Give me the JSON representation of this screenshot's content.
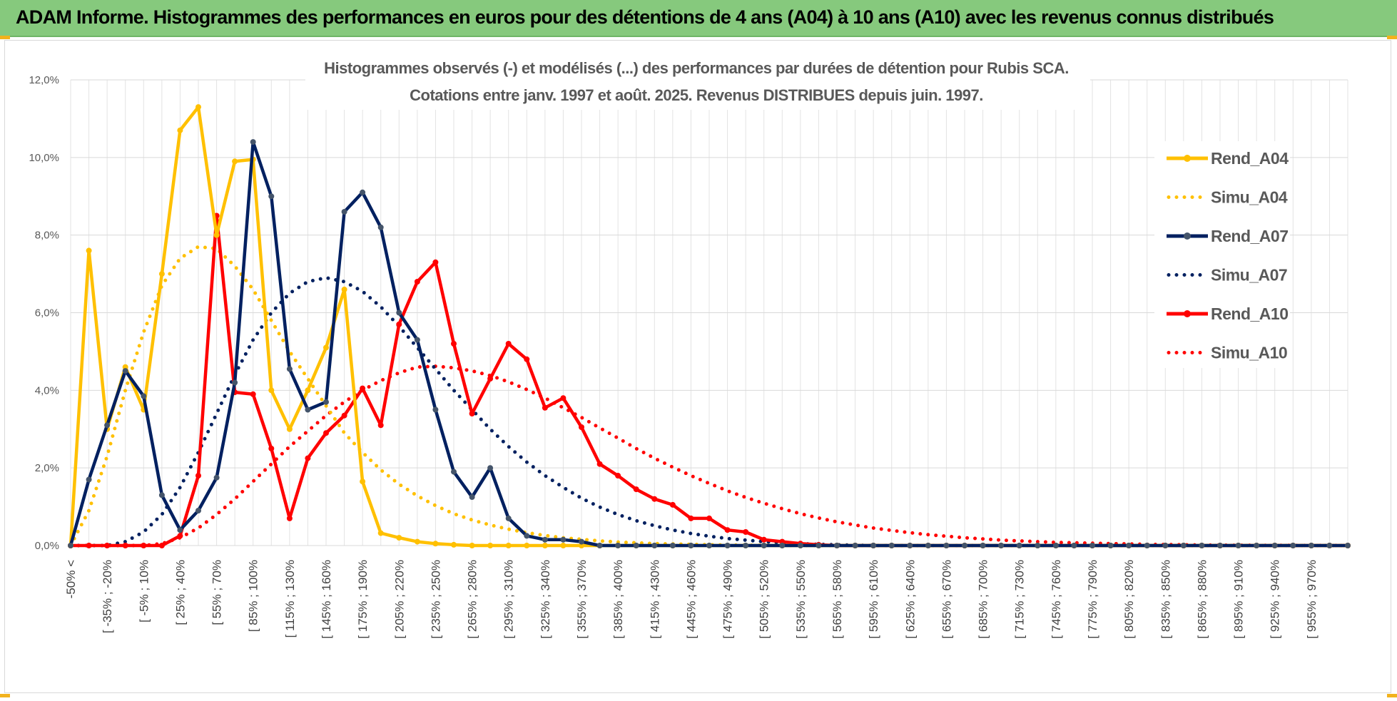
{
  "banner": {
    "title": "ADAM Informe. Histogrammes des performances en euros pour des détentions de 4 ans (A04) à 10 ans (A10) avec les revenus connus distribués",
    "background": "#86c97d"
  },
  "chart_data": {
    "type": "line",
    "title_line1": "Histogrammes observés (-) et modélisés (...) des performances par durées de détention pour Rubis SCA.",
    "title_line2": "Cotations entre janv. 1997 et août. 2025. Revenus DISTRIBUES depuis juin. 1997.",
    "ylim": [
      0,
      12
    ],
    "y_ticks": [
      "0,0%",
      "2,0%",
      "4,0%",
      "6,0%",
      "8,0%",
      "10,0%",
      "12,0%"
    ],
    "grid": true,
    "legend_position": "right",
    "x_labels": [
      "-50% <",
      "[ -35% ; -20%",
      "[ -5% ; 10%",
      "[ 25% ; 40%",
      "[ 55% ; 70%",
      "[ 85% ; 100%",
      "[ 115% ; 130%",
      "[ 145% ; 160%",
      "[ 175% ; 190%",
      "[ 205% ; 220%",
      "[ 235% ; 250%",
      "[ 265% ; 280%",
      "[ 295% ; 310%",
      "[ 325% ; 340%",
      "[ 355% ; 370%",
      "[ 385% ; 400%",
      "[ 415% ; 430%",
      "[ 445% ; 460%",
      "[ 475% ; 490%",
      "[ 505% ; 520%",
      "[ 535% ; 550%",
      "[ 565% ; 580%",
      "[ 595% ; 610%",
      "[ 625% ; 640%",
      "[ 655% ; 670%",
      "[ 685% ; 700%",
      "[ 715% ; 730%",
      "[ 745% ; 760%",
      "[ 775% ; 790%",
      "[ 805% ; 820%",
      "[ 835% ; 850%",
      "[ 865% ; 880%",
      "[ 895% ; 910%",
      "[ 925% ; 940%",
      "[ 955% ; 970%"
    ],
    "series": [
      {
        "name": "Rend_A04",
        "style": "solid",
        "color": "#ffc000",
        "values": [
          0,
          7.6,
          3.0,
          4.6,
          3.5,
          7.0,
          10.7,
          11.3,
          8.0,
          9.9,
          9.95,
          4.0,
          3.0,
          4.0,
          5.1,
          6.6,
          1.65,
          0.32,
          0.2,
          0.1,
          0.05,
          0.02,
          0,
          0,
          0,
          0,
          0,
          0,
          0,
          0
        ]
      },
      {
        "name": "Simu_A04",
        "style": "dotted",
        "color": "#ffc000",
        "values": [
          0,
          0.9,
          2.3,
          4.0,
          5.5,
          6.7,
          7.4,
          7.7,
          7.65,
          7.2,
          6.6,
          5.8,
          5.0,
          4.3,
          3.6,
          2.9,
          2.4,
          1.95,
          1.58,
          1.28,
          1.03,
          0.82,
          0.66,
          0.53,
          0.42,
          0.33,
          0.26,
          0.2,
          0.16,
          0.12,
          0.09,
          0.07,
          0.05,
          0.04,
          0.03,
          0.02,
          0.015,
          0.01,
          0.005,
          0,
          0
        ]
      },
      {
        "name": "Rend_A07",
        "style": "solid",
        "color": "#002060",
        "values": [
          0,
          1.7,
          3.1,
          4.5,
          3.85,
          1.3,
          0.4,
          0.9,
          1.75,
          4.2,
          10.4,
          9.0,
          4.55,
          3.5,
          3.7,
          8.6,
          9.1,
          8.2,
          6.0,
          5.3,
          3.5,
          1.9,
          1.25,
          2.0,
          0.7,
          0.25,
          0.15,
          0.15,
          0.1,
          0,
          0,
          0,
          0,
          0,
          0,
          0,
          0,
          0,
          0,
          0,
          0,
          0,
          0,
          0,
          0,
          0,
          0,
          0,
          0,
          0,
          0,
          0,
          0,
          0,
          0,
          0,
          0,
          0,
          0,
          0,
          0,
          0,
          0,
          0,
          0,
          0,
          0,
          0,
          0,
          0
        ]
      },
      {
        "name": "Simu_A07",
        "style": "dotted",
        "color": "#002060",
        "values": [
          0,
          0,
          0,
          0.1,
          0.35,
          0.8,
          1.5,
          2.4,
          3.4,
          4.4,
          5.3,
          6.0,
          6.5,
          6.8,
          6.9,
          6.8,
          6.55,
          6.15,
          5.65,
          5.1,
          4.55,
          4.0,
          3.5,
          3.0,
          2.55,
          2.15,
          1.8,
          1.5,
          1.22,
          0.99,
          0.8,
          0.64,
          0.51,
          0.4,
          0.31,
          0.24,
          0.18,
          0.14,
          0.1,
          0.07,
          0.05,
          0.03,
          0.02,
          0.01,
          0,
          0
        ]
      },
      {
        "name": "Rend_A10",
        "style": "solid",
        "color": "#ff0000",
        "values": [
          0,
          0,
          0,
          0,
          0,
          0,
          0.25,
          1.8,
          8.5,
          3.95,
          3.9,
          2.5,
          0.7,
          2.25,
          2.9,
          3.35,
          4.05,
          3.1,
          5.7,
          6.8,
          7.3,
          5.2,
          3.4,
          4.3,
          5.2,
          4.8,
          3.55,
          3.8,
          3.05,
          2.1,
          1.8,
          1.45,
          1.2,
          1.05,
          0.7,
          0.7,
          0.4,
          0.35,
          0.15,
          0.1,
          0.05,
          0.02,
          0,
          0,
          0,
          0,
          0,
          0,
          0,
          0,
          0,
          0,
          0,
          0,
          0,
          0,
          0,
          0,
          0,
          0,
          0,
          0,
          0,
          0,
          0,
          0,
          0,
          0,
          0,
          0
        ]
      },
      {
        "name": "Simu_A10",
        "style": "dotted",
        "color": "#ff0000",
        "values": [
          0,
          0,
          0,
          0,
          0,
          0.05,
          0.2,
          0.45,
          0.8,
          1.2,
          1.65,
          2.1,
          2.55,
          2.95,
          3.35,
          3.7,
          4.0,
          4.25,
          4.45,
          4.6,
          4.62,
          4.58,
          4.5,
          4.38,
          4.22,
          4.02,
          3.8,
          3.55,
          3.3,
          3.03,
          2.77,
          2.5,
          2.25,
          2.02,
          1.8,
          1.6,
          1.41,
          1.24,
          1.09,
          0.95,
          0.82,
          0.71,
          0.61,
          0.53,
          0.45,
          0.39,
          0.33,
          0.28,
          0.24,
          0.2,
          0.17,
          0.14,
          0.12,
          0.1,
          0.08,
          0.07,
          0.06,
          0.05,
          0.04,
          0.03,
          0.025,
          0.02,
          0.015,
          0.01,
          0.008,
          0.006,
          0.004,
          0.003,
          0.002,
          0.001
        ]
      }
    ]
  }
}
